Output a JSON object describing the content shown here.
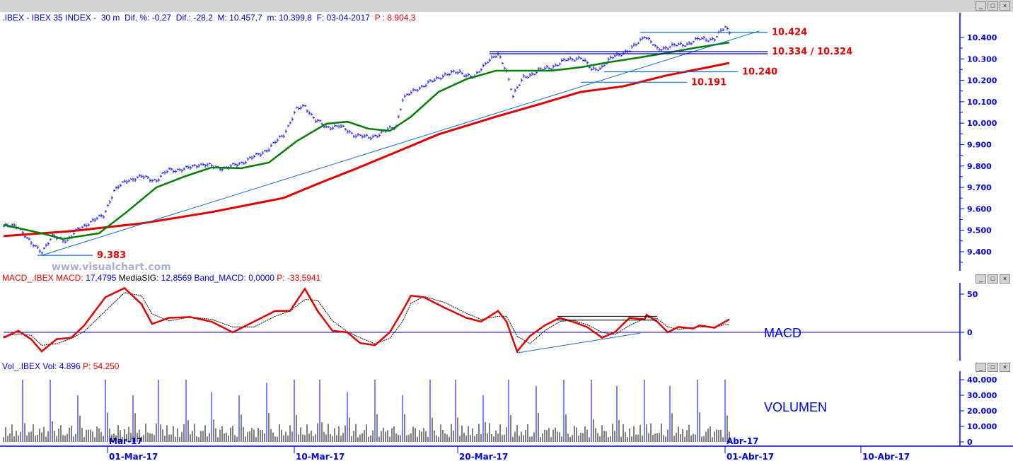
{
  "title": {
    "symbol": ".IBEX - IBEX 35 INDEX - ",
    "period": " 30 m ",
    "dif_pct": " Dif. %: -0,27 ",
    "dif": " Dif.: -28,2 ",
    "max": " M: 10.457,7 ",
    "min": " m: 10.399,8 ",
    "date": " F: 03-04-2017 ",
    "p": " P : 8.904,3"
  },
  "macd_header": {
    "name": "MACD_.IBEX MACD: ",
    "macd": "17,4795 ",
    "sig_label": "MediaSIG: ",
    "sig": "12,8569 ",
    "band": "Band_MACD: 0,0000 ",
    "p": "P: -33,5941"
  },
  "vol_header": {
    "name": "Vol_.IBEX Vol: 4.896 ",
    "p": "P: 54.250"
  },
  "watermark": "www.visualchart.com",
  "panel_labels": {
    "macd": "MACD",
    "volume": "VOLUMEN"
  },
  "window_buttons": {
    "min": "_",
    "max": "□",
    "close": "×"
  },
  "chart_data": [
    {
      "type": "line",
      "title": "IBEX 35 INDEX 30 m",
      "ylim": [
        9300,
        10500
      ],
      "yticks": [
        "10.400",
        "10.300",
        "10.200",
        "10.100",
        "10.000",
        "9.900",
        "9.800",
        "9.700",
        "9.600",
        "9.500",
        "9.400"
      ],
      "ytick_values": [
        10400,
        10300,
        10200,
        10100,
        10000,
        9900,
        9800,
        9700,
        9600,
        9500,
        9400
      ],
      "price": {
        "x": [
          0,
          7,
          13,
          18,
          23,
          30,
          35,
          40,
          47,
          52,
          58,
          65,
          72,
          78,
          85,
          92,
          98,
          105,
          112,
          118,
          125,
          132,
          138,
          142,
          147,
          152,
          158,
          165,
          172,
          178,
          185,
          188,
          195,
          202,
          208,
          215,
          222,
          228,
          233,
          237,
          240,
          245,
          252,
          258,
          265,
          272,
          277,
          282,
          288,
          295,
          302,
          308,
          315,
          322,
          328,
          335,
          340,
          342
        ],
        "close": [
          9519,
          9519,
          9436,
          9403,
          9469,
          9453,
          9502,
          9535,
          9568,
          9684,
          9733,
          9750,
          9733,
          9783,
          9783,
          9809,
          9799,
          9789,
          9816,
          9842,
          9882,
          9948,
          10063,
          10080,
          10014,
          9981,
          9987,
          9948,
          9931,
          9954,
          9987,
          10113,
          10162,
          10195,
          10228,
          10238,
          10212,
          10294,
          10317,
          10245,
          10129,
          10212,
          10245,
          10261,
          10294,
          10307,
          10251,
          10261,
          10317,
          10337,
          10410,
          10344,
          10360,
          10370,
          10393,
          10393,
          10449,
          10426
        ]
      },
      "ma_green": {
        "x": [
          0,
          18,
          28,
          45,
          58,
          72,
          85,
          98,
          112,
          125,
          138,
          152,
          162,
          172,
          182,
          192,
          205,
          218,
          232,
          245,
          258,
          272,
          285,
          298,
          312,
          325,
          342
        ],
        "values": [
          9525,
          9486,
          9460,
          9486,
          9585,
          9700,
          9750,
          9793,
          9790,
          9816,
          9915,
          9997,
          10007,
          9974,
          9964,
          10030,
          10146,
          10205,
          10245,
          10245,
          10245,
          10261,
          10284,
          10304,
          10327,
          10350,
          10377
        ]
      },
      "ma_red": {
        "x": [
          0,
          32,
          65,
          98,
          132,
          148,
          165,
          185,
          205,
          232,
          252,
          272,
          292,
          312,
          332,
          342
        ],
        "values": [
          9473,
          9496,
          9532,
          9585,
          9651,
          9717,
          9783,
          9865,
          9948,
          10030,
          10087,
          10146,
          10172,
          10222,
          10261,
          10281
        ]
      },
      "levels": [
        {
          "label": "10.424",
          "value": 10424,
          "x": [
            300,
            360
          ]
        },
        {
          "label": "10.334 / 10.324",
          "value": 10334,
          "value2": 10324,
          "x": [
            229,
            360
          ]
        },
        {
          "label": "10.240",
          "value": 10240,
          "x": [
            283,
            346
          ]
        },
        {
          "label": "10.191",
          "value": 10191,
          "x": [
            272,
            322
          ]
        },
        {
          "label": "9.383",
          "value": 9383,
          "x": [
            16,
            42
          ]
        }
      ],
      "trendline": {
        "x": [
          18,
          356
        ],
        "values": [
          9383,
          10430
        ]
      }
    },
    {
      "type": "line",
      "title": "MACD",
      "ylim": [
        -30,
        65
      ],
      "yticks": [
        "50",
        "0"
      ],
      "ytick_values": [
        50,
        0
      ],
      "x": [
        0,
        7,
        13,
        18,
        25,
        32,
        38,
        48,
        57,
        65,
        70,
        78,
        88,
        98,
        108,
        118,
        128,
        135,
        142,
        148,
        155,
        162,
        168,
        175,
        182,
        188,
        192,
        198,
        208,
        218,
        225,
        233,
        237,
        242,
        248,
        255,
        262,
        268,
        275,
        282,
        288,
        295,
        302,
        303,
        308,
        313,
        318,
        325,
        328,
        335,
        342
      ],
      "macd": [
        -7,
        2,
        -9,
        -25,
        -9,
        -7,
        9,
        46,
        58,
        37,
        11,
        19,
        20,
        14,
        0,
        14,
        28,
        28,
        57,
        28,
        2,
        0,
        -14,
        -17,
        0,
        28,
        48,
        46,
        32,
        19,
        14,
        28,
        14,
        -25,
        -5,
        9,
        19,
        14,
        7,
        -7,
        0,
        19,
        17,
        23,
        14,
        0,
        7,
        5,
        9,
        6,
        17
      ],
      "signal": [
        -5,
        -2,
        -4,
        -17,
        -15,
        -8,
        1,
        28,
        52,
        48,
        24,
        15,
        20,
        17,
        7,
        7,
        21,
        28,
        43,
        42,
        15,
        1,
        -7,
        -15,
        -8,
        14,
        38,
        47,
        39,
        25,
        17,
        21,
        21,
        -5,
        -15,
        2,
        14,
        16,
        10,
        0,
        -3,
        9,
        18,
        20,
        18,
        7,
        4,
        6,
        7,
        7,
        11
      ],
      "band": 0,
      "resistance": {
        "x": [
          261,
          308
        ],
        "values": [
          21,
          16
        ]
      },
      "trendline": {
        "x": [
          242,
          300
        ],
        "values": [
          -27,
          -1
        ]
      }
    },
    {
      "type": "bar",
      "title": "Volumen",
      "ylim": [
        0,
        45000
      ],
      "yticks": [
        "40.000",
        "30.000",
        "20.000",
        "10.000",
        "0"
      ],
      "ytick_values": [
        40000,
        30000,
        20000,
        10000,
        0
      ],
      "session_open_x": [
        9,
        22,
        35,
        48,
        61,
        73,
        86,
        98,
        111,
        124,
        137,
        149,
        162,
        175,
        188,
        201,
        213,
        226,
        238,
        251,
        264,
        277,
        289,
        302,
        314,
        327,
        340
      ],
      "session_open_volume": [
        40000,
        40000,
        30000,
        40000,
        30000,
        40000,
        40000,
        32000,
        30000,
        38000,
        40000,
        40000,
        32000,
        40000,
        30000,
        40000,
        40000,
        30000,
        40000,
        36000,
        40000,
        40000,
        36000,
        40000,
        36000,
        40000,
        40000
      ],
      "typical_volume": [
        3000,
        12000
      ],
      "xticks": [
        "01-Mar-17",
        "10-Mar-17",
        "20-Mar-17",
        "01-Abr-17",
        "10-Abr-17"
      ],
      "xtick_bars": [
        49,
        137,
        214,
        340,
        404
      ],
      "month_labels": [
        "Mar-17",
        "Abr-17"
      ]
    }
  ]
}
